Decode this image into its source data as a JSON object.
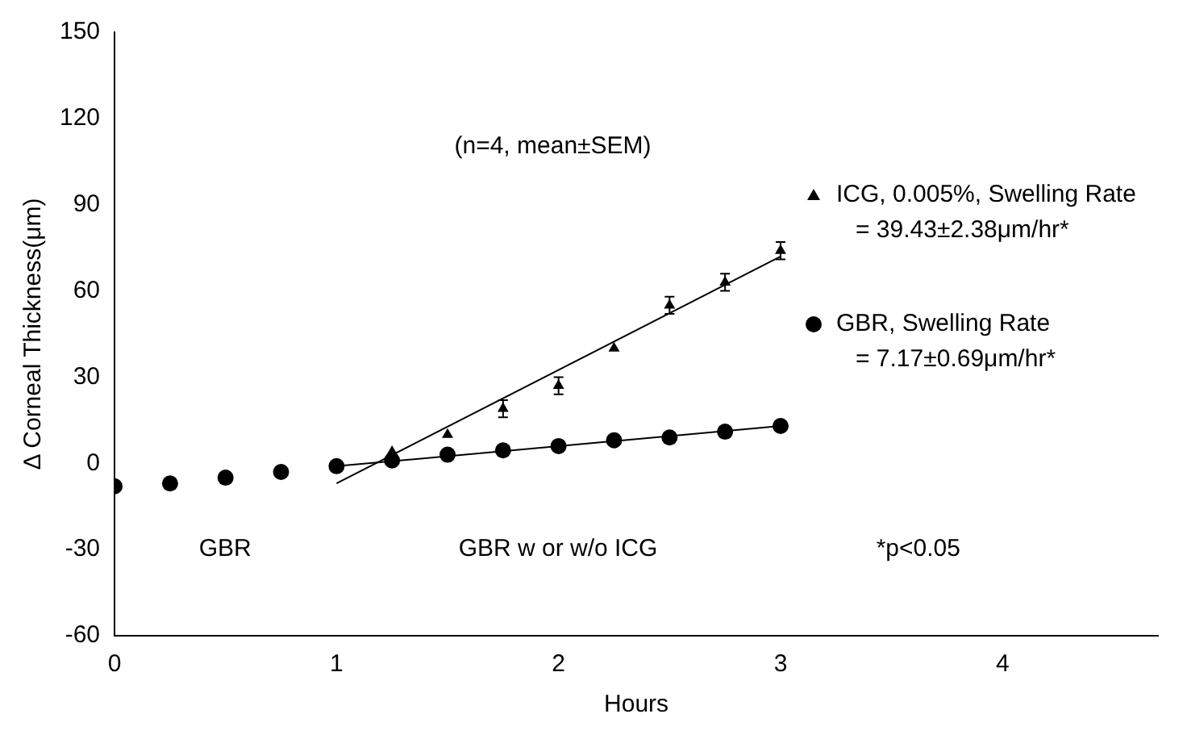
{
  "chart_data": {
    "type": "scatter",
    "xlabel": "Hours",
    "ylabel": "Δ Corneal Thickness(μm)",
    "xlim": [
      0,
      4.7
    ],
    "xticks": [
      0,
      1,
      2,
      3,
      4
    ],
    "ylim": [
      -60,
      150
    ],
    "yticks": [
      -60,
      -30,
      0,
      30,
      60,
      90,
      120,
      150
    ],
    "grid": false,
    "legend": "right",
    "annotations": [
      "(n=4, mean±SEM)",
      "GBR",
      "GBR w or w/o ICG",
      "*p<0.05"
    ],
    "series": [
      {
        "name": "ICG, 0.005%, Swelling Rate\n= 39.43±2.38μm/hr*",
        "marker": "triangle",
        "color": "#000000",
        "x": [
          1.25,
          1.5,
          1.75,
          2,
          2.25,
          2.5,
          2.75,
          3
        ],
        "values": [
          4,
          10,
          19,
          27,
          40,
          55,
          63,
          74
        ],
        "errors": [
          null,
          null,
          3,
          3,
          null,
          3,
          3,
          3
        ]
      },
      {
        "name": "GBR, Swelling Rate\n= 7.17±0.69μm/hr*",
        "marker": "circle",
        "color": "#000000",
        "x": [
          0,
          0.25,
          0.5,
          0.75,
          1,
          1.25,
          1.5,
          1.75,
          2,
          2.25,
          2.5,
          2.75,
          3
        ],
        "values": [
          -8,
          -7,
          -5,
          -3,
          -1,
          1,
          3,
          4.5,
          6,
          8,
          9,
          11,
          13
        ]
      },
      {
        "type": "line",
        "marker": "none",
        "line_style": "solid",
        "color": "#000000",
        "x": [
          1,
          3
        ],
        "values": [
          -7,
          72
        ]
      },
      {
        "type": "line",
        "marker": "none",
        "line_style": "solid",
        "color": "#000000",
        "x": [
          1,
          3
        ],
        "values": [
          -1,
          13
        ]
      }
    ]
  }
}
